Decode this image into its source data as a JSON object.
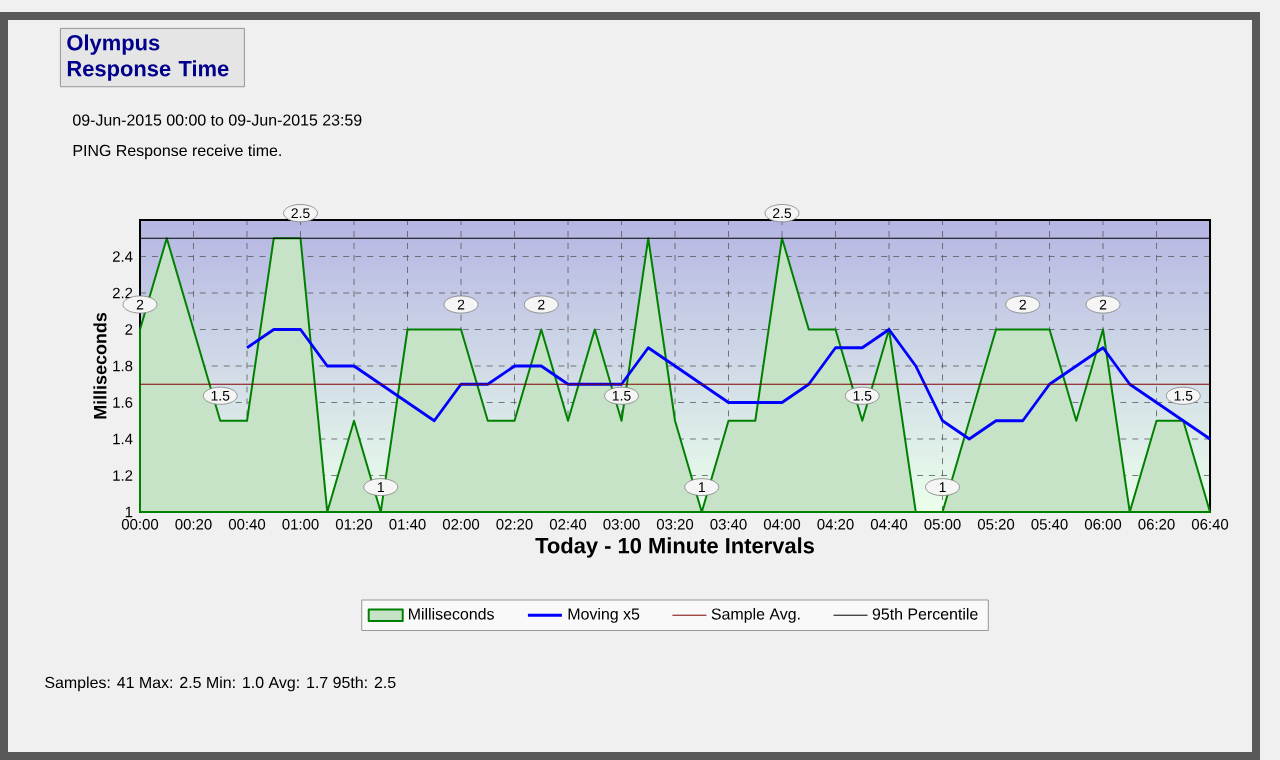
{
  "chart_data": {
    "type": "area",
    "title": "Olympus Response Time",
    "subtitle": "09-Jun-2015 00:00 to 09-Jun-2015 23:59",
    "annotations": [
      "PING Response receive time.",
      "Samples: 41 Max: 2.5 Min: 1.0 Avg: 1.7 95th: 2.5"
    ],
    "xlabel": "Today - 10 Minute Intervals",
    "ylabel": "Milliseconds",
    "categories": [
      "00:00",
      null,
      "00:20",
      null,
      "00:40",
      null,
      "01:00",
      null,
      "01:20",
      null,
      "01:40",
      null,
      "02:00",
      null,
      "02:20",
      null,
      "02:40",
      null,
      "03:00",
      null,
      "03:20",
      null,
      "03:40",
      null,
      "04:00",
      null,
      "04:20",
      null,
      "04:40",
      null,
      "05:00",
      null,
      "05:20",
      null,
      "05:40",
      null,
      "06:00",
      null,
      "06:20",
      null,
      "06:40"
    ],
    "series": [
      {
        "name": "Milliseconds",
        "color": "#008000",
        "values": [
          2.0,
          2.5,
          2.0,
          1.5,
          1.5,
          2.5,
          2.5,
          1.0,
          1.5,
          1.0,
          2.0,
          2.0,
          2.0,
          1.5,
          1.5,
          2.0,
          1.5,
          2.0,
          1.5,
          2.5,
          1.5,
          1.0,
          1.5,
          1.5,
          2.5,
          2.0,
          2.0,
          1.5,
          2.0,
          1.0,
          1.0,
          1.5,
          2.0,
          2.0,
          2.0,
          1.5,
          2.0,
          1.0,
          1.5,
          1.5,
          1.0
        ],
        "value_labels": [
          "2",
          null,
          null,
          "1.5",
          null,
          null,
          "2.5",
          null,
          null,
          "1",
          null,
          null,
          "2",
          null,
          null,
          "2",
          null,
          null,
          "1.5",
          null,
          null,
          "1",
          null,
          null,
          "2.5",
          null,
          null,
          "1.5",
          null,
          null,
          "1",
          null,
          null,
          "2",
          null,
          null,
          "2",
          null,
          null,
          "1.5",
          null
        ]
      },
      {
        "name": "Moving x5",
        "type": "line",
        "color": "#0000ff",
        "values": [
          null,
          null,
          null,
          null,
          1.9,
          2.0,
          2.0,
          1.8,
          1.8,
          1.7,
          1.6,
          1.5,
          1.7,
          1.7,
          1.8,
          1.8,
          1.7,
          1.7,
          1.7,
          1.9,
          1.8,
          1.7,
          1.6,
          1.6,
          1.6,
          1.7,
          1.9,
          1.9,
          2.0,
          1.8,
          1.5,
          1.4,
          1.5,
          1.5,
          1.7,
          1.8,
          1.9,
          1.7,
          1.6,
          1.5,
          1.4
        ]
      }
    ],
    "ref_lines": [
      {
        "axis": "y",
        "value": 1.7,
        "label": "Sample Avg.",
        "color": "#800000"
      },
      {
        "axis": "y",
        "value": 2.5,
        "label": "95th Percentile",
        "color": "#000000"
      }
    ],
    "ylim": [
      1,
      2.6
    ],
    "yticks": [
      1,
      1.2,
      1.4,
      1.6,
      1.8,
      2,
      2.2,
      2.4
    ],
    "grid": true,
    "legend": "bottom"
  }
}
